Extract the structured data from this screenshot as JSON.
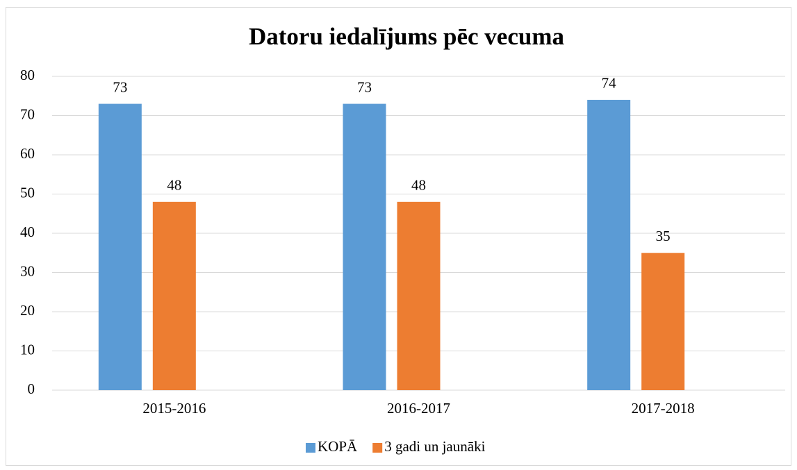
{
  "chart_data": {
    "type": "bar",
    "title": "Datoru iedalījums pēc vecuma",
    "categories": [
      "2015-2016",
      "2016-2017",
      "2017-2018"
    ],
    "series": [
      {
        "name": "KOPĀ",
        "color": "#5b9bd5",
        "values": [
          73,
          73,
          74
        ]
      },
      {
        "name": "3 gadi un jaunāki",
        "color": "#ed7d31",
        "values": [
          48,
          48,
          35
        ]
      }
    ],
    "ylim": [
      0,
      80
    ],
    "yticks": [
      0,
      10,
      20,
      30,
      40,
      50,
      60,
      70,
      80
    ],
    "grid": true,
    "legend": "bottom"
  }
}
